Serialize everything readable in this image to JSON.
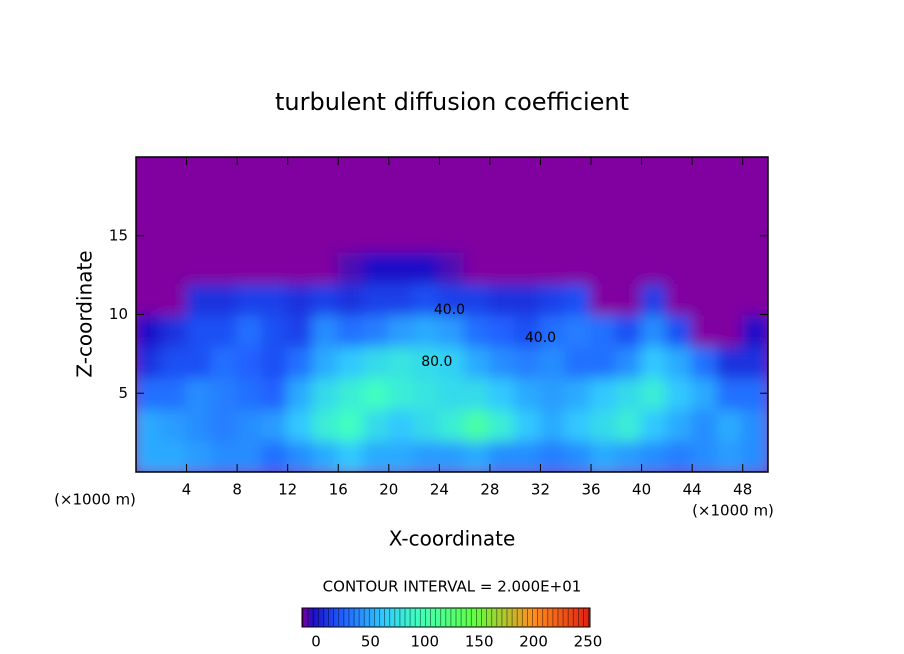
{
  "chart_data": {
    "type": "heatmap",
    "title": "turbulent diffusion coefficient",
    "x_label": "X-coordinate",
    "y_label": "Z-coordinate",
    "x_unit_label": "(×1000 m)",
    "contour_text": "CONTOUR INTERVAL = 2.000E+01",
    "xlim": [
      0,
      50
    ],
    "ylim": [
      0,
      20
    ],
    "xticks": [
      4,
      8,
      12,
      16,
      20,
      24,
      28,
      32,
      36,
      40,
      44,
      48
    ],
    "yticks": [
      5,
      10,
      15
    ],
    "x": [
      1,
      3,
      5,
      7,
      9,
      11,
      13,
      15,
      17,
      19,
      21,
      23,
      25,
      27,
      29,
      31,
      33,
      35,
      37,
      39,
      41,
      43,
      45,
      47,
      49
    ],
    "y": [
      1,
      3,
      5,
      7,
      9,
      11,
      13,
      15,
      17,
      19
    ],
    "z": [
      [
        60,
        60,
        55,
        50,
        50,
        40,
        50,
        60,
        70,
        60,
        60,
        55,
        55,
        60,
        50,
        50,
        45,
        50,
        60,
        55,
        50,
        45,
        50,
        55,
        50
      ],
      [
        60,
        55,
        50,
        45,
        50,
        55,
        70,
        90,
        100,
        80,
        70,
        80,
        90,
        110,
        90,
        70,
        60,
        70,
        80,
        90,
        70,
        60,
        50,
        60,
        50
      ],
      [
        40,
        40,
        50,
        45,
        40,
        35,
        60,
        80,
        90,
        100,
        90,
        85,
        80,
        80,
        70,
        60,
        55,
        60,
        70,
        80,
        90,
        70,
        60,
        40,
        40
      ],
      [
        20,
        30,
        30,
        40,
        35,
        30,
        40,
        60,
        70,
        80,
        85,
        80,
        75,
        60,
        50,
        45,
        50,
        40,
        40,
        50,
        70,
        60,
        40,
        20,
        20
      ],
      [
        10,
        20,
        30,
        30,
        40,
        30,
        25,
        50,
        40,
        45,
        55,
        60,
        55,
        40,
        35,
        30,
        40,
        45,
        40,
        30,
        50,
        30,
        0,
        0,
        10
      ],
      [
        0,
        0,
        20,
        20,
        25,
        25,
        20,
        25,
        20,
        25,
        25,
        30,
        25,
        25,
        20,
        20,
        25,
        30,
        0,
        0,
        25,
        0,
        0,
        0,
        0
      ],
      [
        0,
        0,
        0,
        0,
        0,
        0,
        0,
        0,
        5,
        10,
        10,
        10,
        5,
        0,
        0,
        0,
        0,
        0,
        0,
        0,
        0,
        0,
        0,
        0,
        0
      ],
      [
        0,
        0,
        0,
        0,
        0,
        0,
        0,
        0,
        0,
        0,
        0,
        0,
        0,
        0,
        0,
        0,
        0,
        0,
        0,
        0,
        0,
        0,
        0,
        0,
        0
      ],
      [
        0,
        0,
        0,
        0,
        0,
        0,
        0,
        0,
        0,
        0,
        0,
        0,
        0,
        0,
        0,
        0,
        0,
        0,
        0,
        0,
        0,
        0,
        0,
        0,
        0
      ],
      [
        0,
        0,
        0,
        0,
        0,
        0,
        0,
        0,
        0,
        0,
        0,
        0,
        0,
        0,
        0,
        0,
        0,
        0,
        0,
        0,
        0,
        0,
        0,
        0,
        0
      ]
    ],
    "annotations": [
      {
        "text": "40.0",
        "x": 24.8,
        "y": 10.3
      },
      {
        "text": "40.0",
        "x": 32,
        "y": 8.5
      },
      {
        "text": "80.0",
        "x": 23.8,
        "y": 7.0
      }
    ],
    "clim": [
      0,
      250
    ],
    "cticks": [
      0,
      50,
      100,
      150,
      200,
      250
    ],
    "colorscale": [
      [
        0,
        "#8000a0"
      ],
      [
        10,
        "#1c10c8"
      ],
      [
        35,
        "#2060ff"
      ],
      [
        70,
        "#30c8ff"
      ],
      [
        100,
        "#40ffc0"
      ],
      [
        150,
        "#60ff40"
      ],
      [
        200,
        "#ff9020"
      ],
      [
        250,
        "#e02010"
      ]
    ]
  }
}
